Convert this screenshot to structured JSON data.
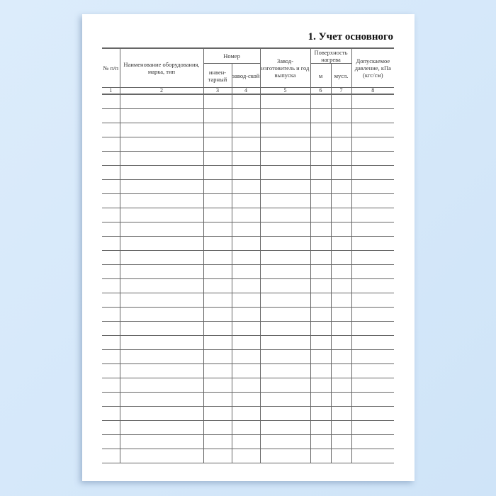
{
  "title": "1. Учет основного",
  "table": {
    "headers": {
      "num": "№ п/п",
      "name": "Наименование оборудования, марка, тип",
      "number_group": "Номер",
      "inventory": "инвен-тарный",
      "factory": "завод-ской",
      "manufacturer": "Завод-изготовитель и год выпуска",
      "surface_group": "Поверхность нагрева",
      "m": "м",
      "musl": "мусл.",
      "pressure": "Допускаемое давление, кПа (кгс/см)"
    },
    "column_numbers": [
      "1",
      "2",
      "3",
      "4",
      "5",
      "6",
      "7",
      "8"
    ],
    "empty_rows": 26
  }
}
